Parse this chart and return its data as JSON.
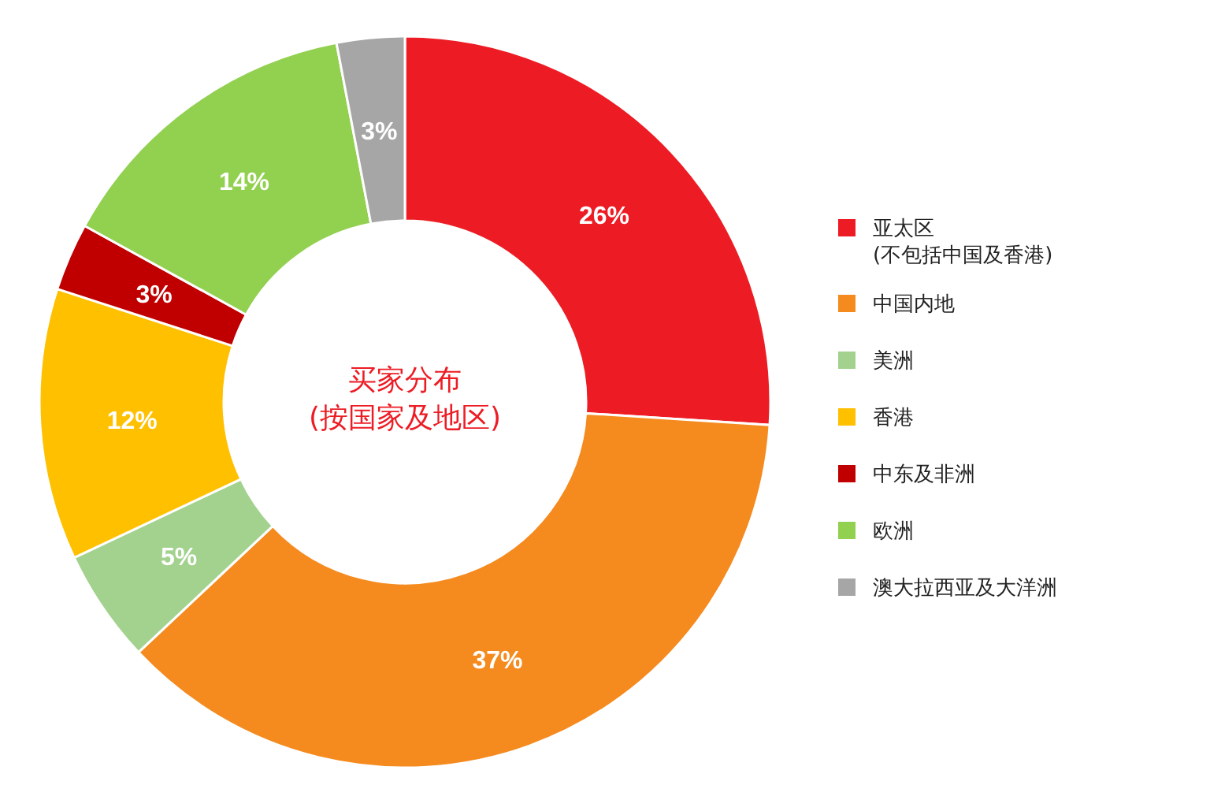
{
  "chart_data": {
    "type": "donut",
    "title": "买家分布\n(按国家及地区)",
    "categories": [
      "亚太区\n(不包括中国及香港)",
      "中国内地",
      "美洲",
      "香港",
      "中东及非洲",
      "欧洲",
      "澳大拉西亚及大洋洲"
    ],
    "values": [
      26,
      37,
      5,
      12,
      3,
      14,
      3
    ],
    "colors": [
      "#ed1c24",
      "#f58a1f",
      "#a3d28f",
      "#ffc000",
      "#c00000",
      "#92d050",
      "#a6a6a6"
    ],
    "value_labels": [
      "26%",
      "37%",
      "5%",
      "12%",
      "3%",
      "14%",
      "3%"
    ],
    "legend": "right"
  }
}
